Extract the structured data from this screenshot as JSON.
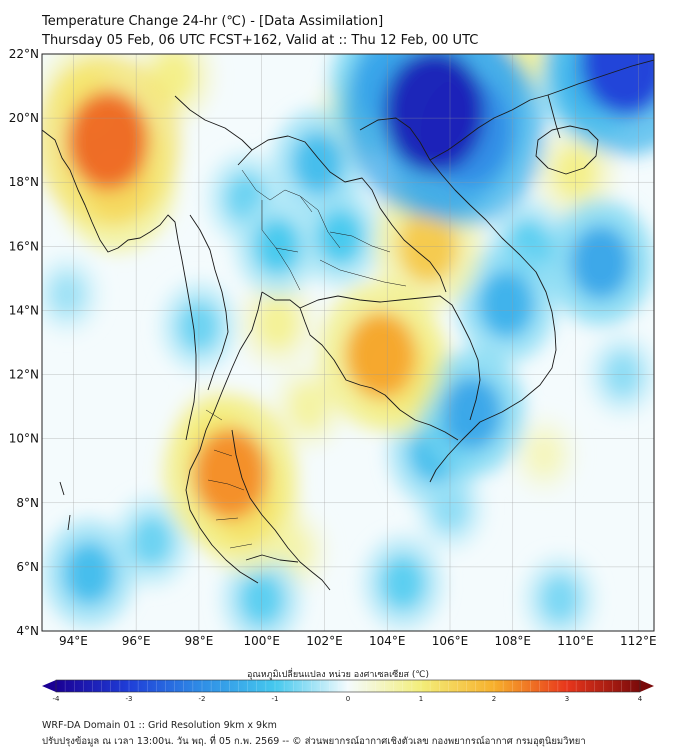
{
  "title": {
    "line1": "Temperature Change 24-hr (℃) - [Data Assimilation]",
    "line2": "Thursday 05 Feb, 06 UTC FCST+162, Valid at :: Thu 12 Feb, 00 UTC"
  },
  "map": {
    "lon_range": [
      93,
      112.5
    ],
    "lat_range": [
      4,
      22
    ],
    "lat_ticks": [
      {
        "value": 22,
        "label": "22°N"
      },
      {
        "value": 20,
        "label": "20°N"
      },
      {
        "value": 18,
        "label": "18°N"
      },
      {
        "value": 16,
        "label": "16°N"
      },
      {
        "value": 14,
        "label": "14°N"
      },
      {
        "value": 12,
        "label": "12°N"
      },
      {
        "value": 10,
        "label": "10°N"
      },
      {
        "value": 8,
        "label": "8°N"
      },
      {
        "value": 6,
        "label": "6°N"
      },
      {
        "value": 4,
        "label": "4°N"
      }
    ],
    "lon_ticks": [
      {
        "value": 94,
        "label": "94°E"
      },
      {
        "value": 96,
        "label": "96°E"
      },
      {
        "value": 98,
        "label": "98°E"
      },
      {
        "value": 100,
        "label": "100°E"
      },
      {
        "value": 102,
        "label": "102°E"
      },
      {
        "value": 104,
        "label": "104°E"
      },
      {
        "value": 106,
        "label": "106°E"
      },
      {
        "value": 108,
        "label": "108°E"
      },
      {
        "value": 110,
        "label": "110°E"
      },
      {
        "value": 112,
        "label": "112°E"
      }
    ],
    "grid": true,
    "field_blobs": [
      {
        "lon": 95.1,
        "lat": 19.3,
        "value": 2.6
      },
      {
        "lon": 95.4,
        "lat": 18.0,
        "value": 1.9
      },
      {
        "lon": 94.3,
        "lat": 20.8,
        "value": 1.0
      },
      {
        "lon": 97.2,
        "lat": 21.3,
        "value": 0.9
      },
      {
        "lon": 99.0,
        "lat": 8.9,
        "value": 2.3
      },
      {
        "lon": 99.5,
        "lat": 7.8,
        "value": 1.6
      },
      {
        "lon": 98.5,
        "lat": 10.0,
        "value": 1.0
      },
      {
        "lon": 103.8,
        "lat": 12.6,
        "value": 2.1
      },
      {
        "lon": 104.5,
        "lat": 12.0,
        "value": 1.5
      },
      {
        "lon": 105.3,
        "lat": 16.0,
        "value": 1.6
      },
      {
        "lon": 105.0,
        "lat": 17.0,
        "value": 0.9
      },
      {
        "lon": 103.0,
        "lat": 20.0,
        "value": 0.9
      },
      {
        "lon": 100.5,
        "lat": 13.6,
        "value": 0.8
      },
      {
        "lon": 101.5,
        "lat": 11.0,
        "value": 0.7
      },
      {
        "lon": 108.3,
        "lat": 21.8,
        "value": 0.8
      },
      {
        "lon": 110.0,
        "lat": 18.3,
        "value": 0.9
      },
      {
        "lon": 101.0,
        "lat": 6.5,
        "value": 0.6
      },
      {
        "lon": 109.0,
        "lat": 9.5,
        "value": 0.5
      },
      {
        "lon": 105.5,
        "lat": 20.2,
        "value": -3.5
      },
      {
        "lon": 106.5,
        "lat": 19.6,
        "value": -3.0
      },
      {
        "lon": 104.0,
        "lat": 21.0,
        "value": -1.8
      },
      {
        "lon": 111.6,
        "lat": 21.8,
        "value": -3.0
      },
      {
        "lon": 110.5,
        "lat": 21.2,
        "value": -1.5
      },
      {
        "lon": 101.8,
        "lat": 18.6,
        "value": -1.2
      },
      {
        "lon": 100.5,
        "lat": 16.0,
        "value": -1.0
      },
      {
        "lon": 102.5,
        "lat": 16.3,
        "value": -1.0
      },
      {
        "lon": 98.0,
        "lat": 13.5,
        "value": -0.8
      },
      {
        "lon": 99.5,
        "lat": 17.5,
        "value": -0.8
      },
      {
        "lon": 106.7,
        "lat": 10.8,
        "value": -1.6
      },
      {
        "lon": 105.5,
        "lat": 9.6,
        "value": -1.2
      },
      {
        "lon": 107.8,
        "lat": 14.2,
        "value": -1.4
      },
      {
        "lon": 110.8,
        "lat": 15.5,
        "value": -1.6
      },
      {
        "lon": 108.5,
        "lat": 16.0,
        "value": -0.9
      },
      {
        "lon": 94.5,
        "lat": 5.8,
        "value": -1.2
      },
      {
        "lon": 96.5,
        "lat": 6.8,
        "value": -0.8
      },
      {
        "lon": 100.0,
        "lat": 5.0,
        "value": -0.9
      },
      {
        "lon": 104.5,
        "lat": 5.5,
        "value": -0.9
      },
      {
        "lon": 106.0,
        "lat": 7.8,
        "value": -0.6
      },
      {
        "lon": 111.5,
        "lat": 12.0,
        "value": -0.6
      },
      {
        "lon": 109.5,
        "lat": 5.0,
        "value": -0.7
      },
      {
        "lon": 93.8,
        "lat": 14.5,
        "value": -0.5
      }
    ]
  },
  "colorbar": {
    "label": "อุณหภูมิเปลี่ยนแปลง หน่วย องศาเซลเซียส (℃)",
    "min": -4,
    "max": 4,
    "ticks": [
      {
        "value": -4,
        "label": "-4"
      },
      {
        "value": -3,
        "label": "-3"
      },
      {
        "value": -2,
        "label": "-2"
      },
      {
        "value": -1,
        "label": "-1"
      },
      {
        "value": 0,
        "label": "0"
      },
      {
        "value": 1,
        "label": "1"
      },
      {
        "value": 2,
        "label": "2"
      },
      {
        "value": 3,
        "label": "3"
      },
      {
        "value": 4,
        "label": "4"
      }
    ],
    "colors": {
      "neg4": "#1a0094",
      "neg3": "#1f3ed8",
      "neg2": "#2f8ee6",
      "neg1": "#45c8ee",
      "zero": "#f4fbfd",
      "pos1": "#f3ee7a",
      "pos2": "#f7b02c",
      "pos3": "#e8361c",
      "pos4": "#7a0a0a"
    }
  },
  "footer": {
    "line1": "WRF-DA Domain 01 :: Grid Resolution 9km x 9km",
    "line2": "ปรับปรุงข้อมูล ณ เวลา 13:00น. วัน พฤ. ที่ 05 ก.พ. 2569 -- © ส่วนพยากรณ์อากาศเชิงตัวเลข กองพยากรณ์อากาศ กรมอุตุนิยมวิทยา"
  }
}
